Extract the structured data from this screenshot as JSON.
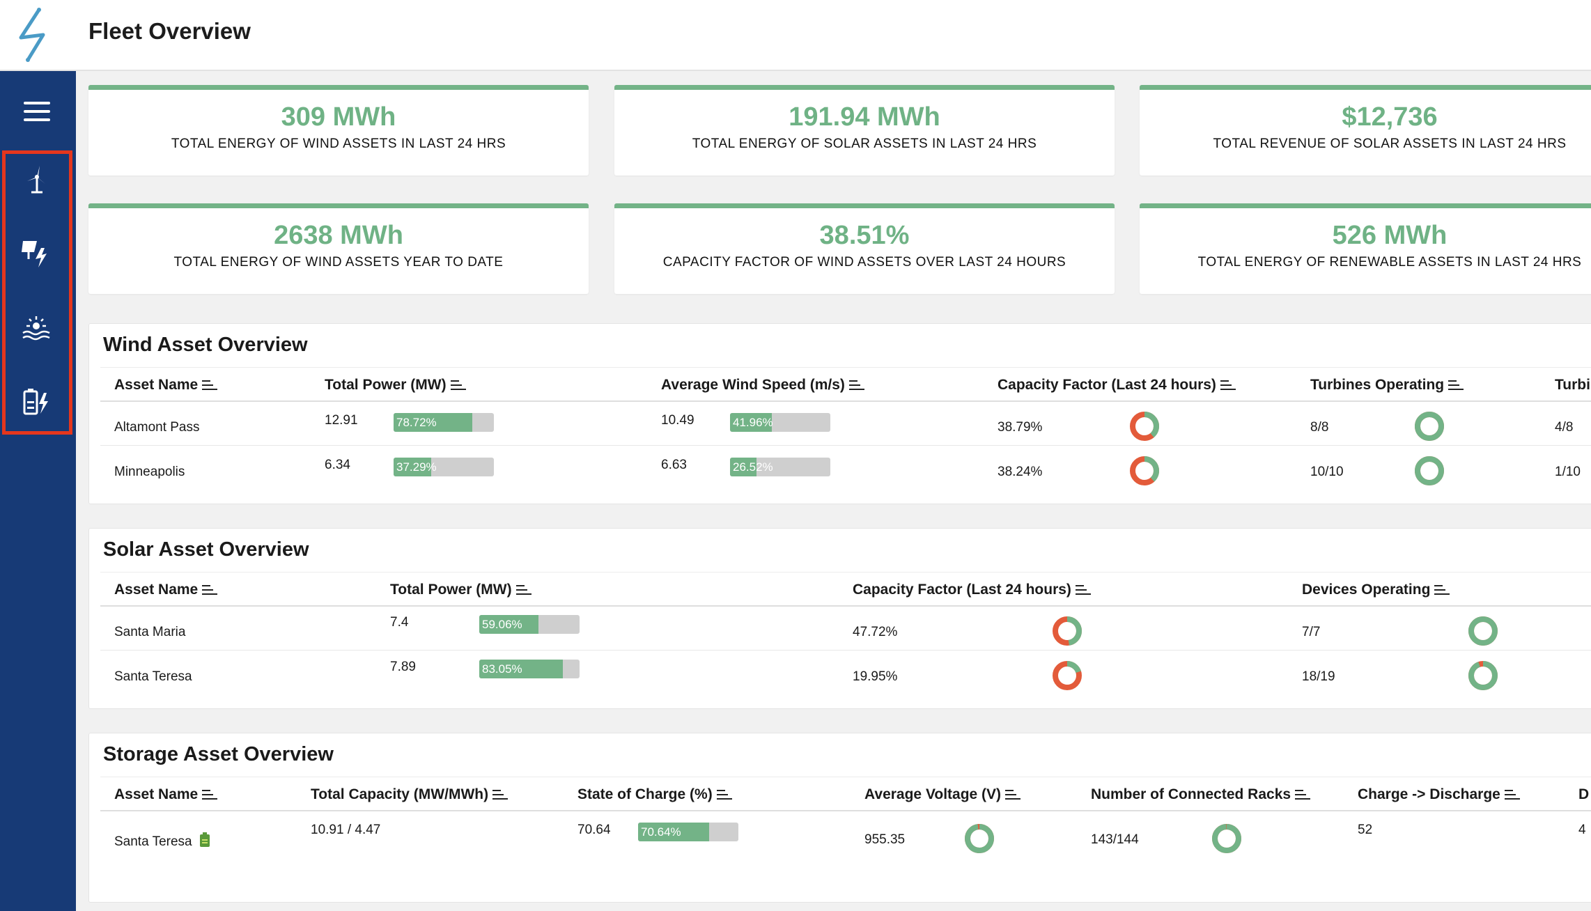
{
  "header": {
    "title": "Fleet Overview",
    "logo_icon": "lightning-bolt-logo"
  },
  "sidebar": {
    "menu_icon": "hamburger-icon",
    "items": [
      {
        "icon": "wind-turbine-icon"
      },
      {
        "icon": "solar-panel-icon"
      },
      {
        "icon": "sun-water-icon"
      },
      {
        "icon": "battery-charge-icon"
      }
    ]
  },
  "stats": [
    {
      "value": "309 MWh",
      "label": "TOTAL ENERGY OF WIND ASSETS IN LAST 24 HRS"
    },
    {
      "value": "191.94 MWh",
      "label": "TOTAL ENERGY OF SOLAR ASSETS IN LAST 24 HRS"
    },
    {
      "value": "$12,736",
      "label": "TOTAL REVENUE OF SOLAR ASSETS IN LAST 24 HRS"
    },
    {
      "value": "2638 MWh",
      "label": "TOTAL ENERGY OF WIND ASSETS YEAR TO DATE"
    },
    {
      "value": "38.51%",
      "label": "CAPACITY FACTOR OF WIND ASSETS OVER LAST 24 HOURS"
    },
    {
      "value": "526 MWh",
      "label": "TOTAL ENERGY OF RENEWABLE ASSETS IN LAST 24 HRS"
    }
  ],
  "wind": {
    "title": "Wind Asset Overview",
    "columns": [
      "Asset Name",
      "Total Power (MW)",
      "Average Wind Speed (m/s)",
      "Capacity Factor (Last 24 hours)",
      "Turbines Operating",
      "Turbi"
    ],
    "rows": [
      {
        "name": "Altamont Pass",
        "power": "12.91",
        "power_pct": 78.72,
        "power_pct_label": "78.72%",
        "wind": "10.49",
        "wind_pct": 41.96,
        "wind_pct_label": "41.96%",
        "cf": "38.79%",
        "cf_frac": 0.3879,
        "turbines": "8/8",
        "turb_frac": 1.0,
        "extra": "4/8"
      },
      {
        "name": "Minneapolis",
        "power": "6.34",
        "power_pct": 37.29,
        "power_pct_label": "37.29%",
        "wind": "6.63",
        "wind_pct": 26.52,
        "wind_pct_label": "26.52%",
        "cf": "38.24%",
        "cf_frac": 0.3824,
        "turbines": "10/10",
        "turb_frac": 1.0,
        "extra": "1/10"
      }
    ]
  },
  "solar": {
    "title": "Solar Asset Overview",
    "columns": [
      "Asset Name",
      "Total Power (MW)",
      "Capacity Factor (Last 24 hours)",
      "Devices Operating"
    ],
    "rows": [
      {
        "name": "Santa Maria",
        "power": "7.4",
        "power_pct": 59.06,
        "power_pct_label": "59.06%",
        "cf": "47.72%",
        "cf_frac": 0.4772,
        "devices": "7/7",
        "dev_frac": 1.0
      },
      {
        "name": "Santa Teresa",
        "power": "7.89",
        "power_pct": 83.05,
        "power_pct_label": "83.05%",
        "cf": "19.95%",
        "cf_frac": 0.1995,
        "devices": "18/19",
        "dev_frac": 0.947
      }
    ]
  },
  "storage": {
    "title": "Storage Asset Overview",
    "columns": [
      "Asset Name",
      "Total Capacity (MW/MWh)",
      "State of Charge (%)",
      "Average Voltage (V)",
      "Number of Connected Racks",
      "Charge -> Discharge",
      "D"
    ],
    "rows": [
      {
        "name": "Santa Teresa",
        "badge_icon": "battery-icon",
        "capacity": "10.91 / 4.47",
        "soc": "70.64",
        "soc_pct": 70.64,
        "soc_pct_label": "70.64%",
        "voltage": "955.35",
        "volt_frac": 0.98,
        "racks": "143/144",
        "racks_frac": 0.993,
        "cycles": "52",
        "extra": "4"
      }
    ]
  },
  "colors": {
    "green": "#73b387",
    "red": "#e35b3a",
    "navy": "#173a76",
    "highlight": "#e5361d"
  }
}
